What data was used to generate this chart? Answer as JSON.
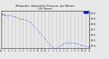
{
  "title": "Milwaukee  Barometric Pressure  per Minute",
  "title2": "(24 Hours)",
  "bg_color": "#e8e8e8",
  "plot_bg": "#e8e8e8",
  "dot_color": "#0000ff",
  "legend_color": "#0000ff",
  "grid_color": "#888888",
  "ylim": [
    29.35,
    30.05
  ],
  "yticks": [
    29.4,
    29.5,
    29.6,
    29.7,
    29.8,
    29.9,
    30.0
  ],
  "xlim": [
    0,
    1440
  ],
  "xtick_positions": [
    0,
    60,
    120,
    180,
    240,
    300,
    360,
    420,
    480,
    540,
    600,
    660,
    720,
    780,
    840,
    900,
    960,
    1020,
    1080,
    1140,
    1200,
    1260,
    1320,
    1380,
    1440
  ],
  "xtick_labels": [
    "12",
    "1",
    "2",
    "3",
    "4",
    "5",
    "6",
    "7",
    "8",
    "9",
    "10",
    "11",
    "12",
    "1",
    "2",
    "3",
    "4",
    "5",
    "6",
    "7",
    "8",
    "9",
    "10",
    "11",
    "12"
  ],
  "data_x": [
    0,
    15,
    30,
    45,
    60,
    90,
    120,
    150,
    180,
    210,
    240,
    270,
    300,
    330,
    360,
    390,
    420,
    450,
    480,
    510,
    540,
    570,
    600,
    630,
    660,
    690,
    720,
    750,
    780,
    810,
    840,
    870,
    900,
    930,
    960,
    990,
    1020,
    1050,
    1080,
    1110,
    1140,
    1170,
    1200,
    1230,
    1260,
    1290,
    1320,
    1350,
    1380,
    1410,
    1440
  ],
  "data_y": [
    29.97,
    29.98,
    29.98,
    29.97,
    29.97,
    29.96,
    29.96,
    29.97,
    29.95,
    29.94,
    29.93,
    29.92,
    29.9,
    29.9,
    29.89,
    29.88,
    29.87,
    29.85,
    29.83,
    29.8,
    29.76,
    29.72,
    29.68,
    29.64,
    29.6,
    29.56,
    29.52,
    29.48,
    29.44,
    29.41,
    29.38,
    29.36,
    29.35,
    29.38,
    29.4,
    29.42,
    29.44,
    29.45,
    29.46,
    29.46,
    29.46,
    29.45,
    29.45,
    29.44,
    29.43,
    29.42,
    29.41,
    29.4,
    29.39,
    29.38,
    29.37
  ]
}
